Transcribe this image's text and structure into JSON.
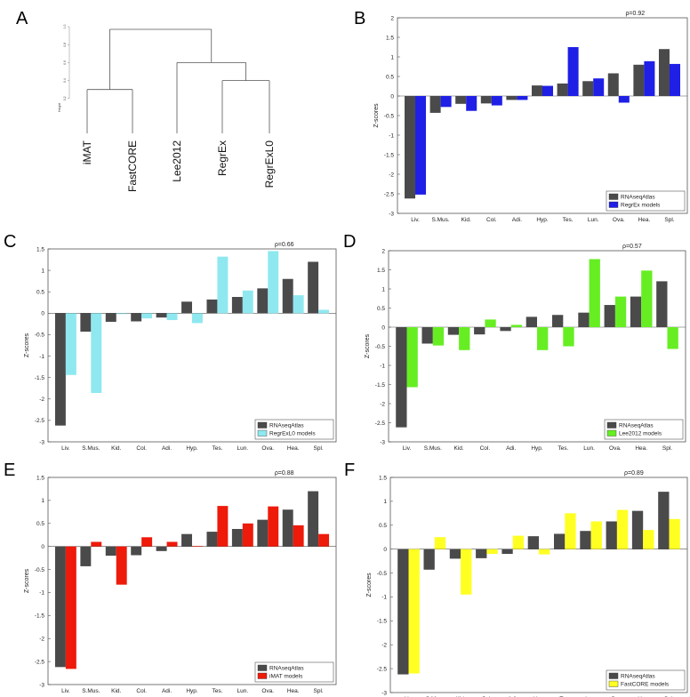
{
  "panel_letters": [
    "A",
    "B",
    "C",
    "D",
    "E",
    "F"
  ],
  "chart_data": [
    {
      "panel": "A",
      "type": "dendrogram",
      "ylabel": "Height",
      "yticks": [
        "0.2",
        "0.4",
        "0.6",
        "0.8",
        "1.0"
      ],
      "leaves": [
        "iMAT",
        "FastCORE",
        "Lee2012",
        "RegrEx",
        "RegrExL0"
      ],
      "merges": [
        {
          "left": "iMAT",
          "right": "FastCORE",
          "height": 0.3
        },
        {
          "left": "RegrEx",
          "right": "RegrExL0",
          "height": 0.4
        },
        {
          "left": "Lee2012",
          "right": "RegrEx+RegrExL0",
          "height": 0.6
        },
        {
          "left": "iMAT+FastCORE",
          "right": "Lee2012+RegrEx+RegrExL0",
          "height": 0.97
        }
      ]
    },
    {
      "panel": "B",
      "type": "bar",
      "categories": [
        "Liv.",
        "S.Mus.",
        "Kid.",
        "Col.",
        "Adi.",
        "Hyp.",
        "Tes.",
        "Lun.",
        "Ova.",
        "Hea.",
        "Spl."
      ],
      "ylabel": "Z-scores",
      "ylim": [
        -3,
        2
      ],
      "yticks": [
        "-3",
        "-2.5",
        "-2",
        "-1.5",
        "-1",
        "-0.5",
        "0",
        "0.5",
        "1",
        "1.5",
        "2"
      ],
      "annotation": "ρ=0.92",
      "legend_position": "bottom-right",
      "series": [
        {
          "name": "RNAseqAtlas",
          "color": "#4a4a4a",
          "values": [
            -2.62,
            -0.43,
            -0.2,
            -0.19,
            -0.1,
            0.27,
            0.32,
            0.38,
            0.58,
            0.8,
            1.2
          ]
        },
        {
          "name": "RegrEx models",
          "color": "#1f1fe6",
          "values": [
            -2.52,
            -0.28,
            -0.38,
            -0.24,
            -0.1,
            0.26,
            1.25,
            0.45,
            -0.17,
            0.89,
            0.82
          ]
        }
      ]
    },
    {
      "panel": "C",
      "type": "bar",
      "categories": [
        "Liv.",
        "S.Mus.",
        "Kid.",
        "Col.",
        "Adi.",
        "Hyp.",
        "Tes.",
        "Lun.",
        "Ova.",
        "Hea.",
        "Spl."
      ],
      "ylabel": "Z-scores",
      "ylim": [
        -3,
        1.5
      ],
      "yticks": [
        "-3",
        "-2.5",
        "-2",
        "-1.5",
        "-1",
        "-0.5",
        "0",
        "0.5",
        "1",
        "1.5"
      ],
      "annotation": "ρ=0.66",
      "legend_position": "bottom-right",
      "series": [
        {
          "name": "RNAseqAtlas",
          "color": "#4a4a4a",
          "values": [
            -2.62,
            -0.43,
            -0.2,
            -0.19,
            -0.1,
            0.27,
            0.32,
            0.38,
            0.58,
            0.8,
            1.2
          ]
        },
        {
          "name": "RegrExL0 models",
          "color": "#8fe8f0",
          "values": [
            -1.44,
            -1.86,
            -0.02,
            -0.12,
            -0.16,
            -0.23,
            1.32,
            0.53,
            1.45,
            0.42,
            0.08
          ]
        }
      ]
    },
    {
      "panel": "D",
      "type": "bar",
      "categories": [
        "Liv.",
        "S.Mus.",
        "Kid.",
        "Col.",
        "Adi.",
        "Hyp.",
        "Tes.",
        "Lun.",
        "Ova.",
        "Hea.",
        "Spl."
      ],
      "ylabel": "Z-scores",
      "ylim": [
        -3,
        2
      ],
      "yticks": [
        "-3",
        "-2.5",
        "-2",
        "-1.5",
        "-1",
        "-0.5",
        "0",
        "0.5",
        "1",
        "1.5",
        "2"
      ],
      "annotation": "ρ=0.57",
      "legend_position": "bottom-right",
      "series": [
        {
          "name": "RNAseqAtlas",
          "color": "#4a4a4a",
          "values": [
            -2.62,
            -0.43,
            -0.2,
            -0.19,
            -0.1,
            0.27,
            0.32,
            0.38,
            0.58,
            0.8,
            1.2
          ]
        },
        {
          "name": "Lee2012 models",
          "color": "#66ee22",
          "values": [
            -1.57,
            -0.48,
            -0.6,
            0.2,
            0.06,
            -0.6,
            -0.5,
            1.78,
            0.8,
            1.48,
            -0.57
          ]
        }
      ]
    },
    {
      "panel": "E",
      "type": "bar",
      "categories": [
        "Liv.",
        "S.Mus.",
        "Kid.",
        "Col.",
        "Adi.",
        "Hyp.",
        "Tes.",
        "Lun.",
        "Ova.",
        "Hea.",
        "Spl."
      ],
      "ylabel": "Z-scores",
      "ylim": [
        -3,
        1.5
      ],
      "yticks": [
        "-3",
        "-2.5",
        "-2",
        "-1.5",
        "-1",
        "-0.5",
        "0",
        "0.5",
        "1",
        "1.5"
      ],
      "annotation": "ρ=0.88",
      "legend_position": "bottom-right",
      "series": [
        {
          "name": "RNAseqAtlas",
          "color": "#4a4a4a",
          "values": [
            -2.62,
            -0.43,
            -0.2,
            -0.19,
            -0.1,
            0.27,
            0.32,
            0.38,
            0.58,
            0.8,
            1.2
          ]
        },
        {
          "name": "iMAT models",
          "color": "#ee1a0a",
          "values": [
            -2.66,
            0.1,
            -0.83,
            0.2,
            0.1,
            0.01,
            0.88,
            0.5,
            0.87,
            0.46,
            0.27
          ]
        }
      ]
    },
    {
      "panel": "F",
      "type": "bar",
      "categories": [
        "Liv.",
        "S.Mus.",
        "Kid.",
        "Col.",
        "Adi.",
        "Hyp.",
        "Tes.",
        "Lun.",
        "Ova.",
        "Hea",
        "Spl."
      ],
      "ylabel": "Z-scores",
      "ylim": [
        -3,
        1.5
      ],
      "yticks": [
        "-3",
        "-2.5",
        "-2",
        "-1.5",
        "-1",
        "-0.5",
        "0",
        "0.5",
        "1",
        "1.5"
      ],
      "annotation": "ρ=0.89",
      "legend_position": "bottom-right",
      "series": [
        {
          "name": "RNAseqAtlas",
          "color": "#4a4a4a",
          "values": [
            -2.62,
            -0.43,
            -0.2,
            -0.19,
            -0.1,
            0.27,
            0.32,
            0.38,
            0.58,
            0.8,
            1.2
          ]
        },
        {
          "name": "FastCORE models",
          "color": "#ffff22",
          "values": [
            -2.6,
            0.25,
            -0.95,
            -0.1,
            0.28,
            -0.11,
            0.75,
            0.58,
            0.82,
            0.4,
            0.63
          ]
        }
      ]
    }
  ]
}
